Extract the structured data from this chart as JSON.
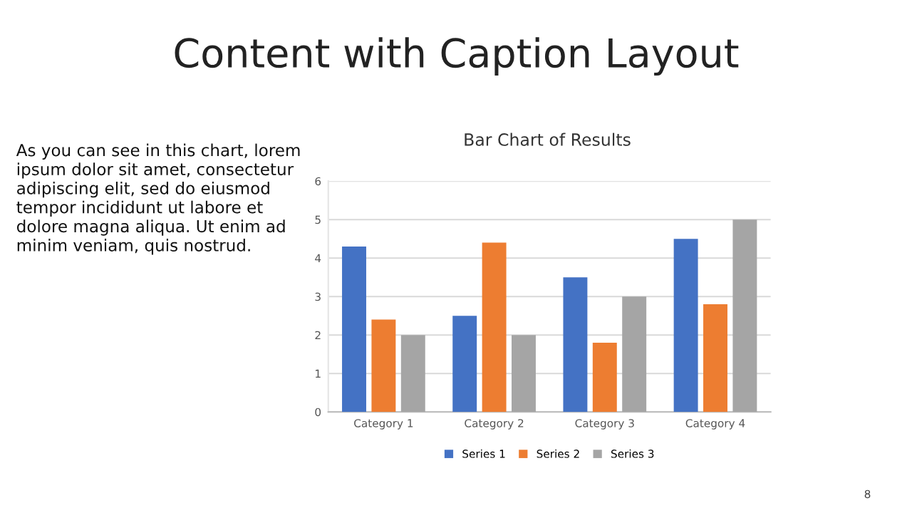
{
  "chart_data": {
    "type": "bar",
    "title": "Content with Caption Layout",
    "subtitle": "Bar Chart of Results",
    "annotations": [
      "As you can see in this chart, lorem ipsum dolor sit amet, consectetur adipiscing elit, sed do eiusmod tempor incididunt ut labore et dolore magna aliqua. Ut enim ad minim veniam, quis nostrud.",
      "8"
    ],
    "categories": [
      "Category 1",
      "Category 2",
      "Category 3",
      "Category 4"
    ],
    "series": [
      {
        "name": "Series 1",
        "color": "#4472c4",
        "values": [
          4.3,
          2.5,
          3.5,
          4.5
        ]
      },
      {
        "name": "Series 2",
        "color": "#ed7d31",
        "values": [
          2.4,
          4.4,
          1.8,
          2.8
        ]
      },
      {
        "name": "Series 3",
        "color": "#a5a5a5",
        "values": [
          2,
          2,
          3,
          5
        ]
      }
    ],
    "ylim": [
      0,
      6
    ],
    "yticks": [
      0,
      1,
      2,
      3,
      4,
      5,
      6
    ],
    "grid": "y",
    "legend": "bottom"
  }
}
